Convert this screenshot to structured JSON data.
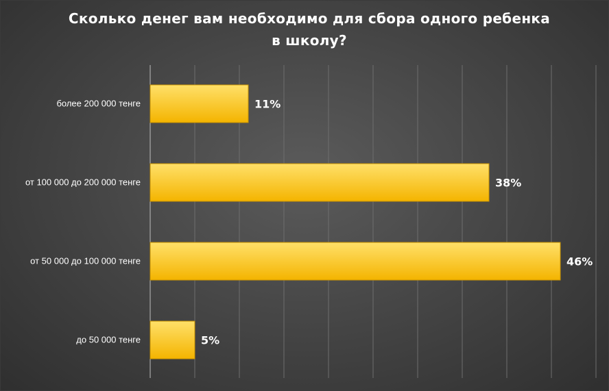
{
  "chart_data": {
    "type": "bar",
    "orientation": "horizontal",
    "title": "Сколько денег вам необходимо для сбора одного ребенка в школу?",
    "categories": [
      "более 200 000 тенге",
      "от 100 000 до 200 000 тенге",
      "от 50 000  до 100 000 тенге",
      "до 50 000 тенге"
    ],
    "values": [
      11,
      38,
      46,
      5
    ],
    "value_labels": [
      "11%",
      "38%",
      "46%",
      "5%"
    ],
    "unit": "%",
    "xlim": [
      0,
      50
    ],
    "grid": true,
    "legend": "none",
    "colors": {
      "bar_top": "#ffe069",
      "bar_bottom": "#f4b400",
      "bar_stroke": "#c99300",
      "gridline": "#6e6e6e",
      "axis": "#bdbdbd",
      "text": "#ffffff"
    }
  }
}
